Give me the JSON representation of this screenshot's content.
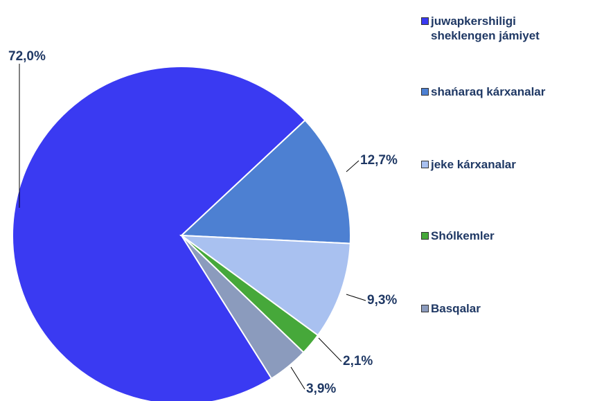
{
  "chart_data": {
    "type": "pie",
    "categories": [
      "juwapkershiligi sheklengen jámiyet",
      "shańaraq kárxanalar",
      "jeke kárxanalar",
      "Shólkemler",
      "Basqalar"
    ],
    "values": [
      72.0,
      12.7,
      9.3,
      2.1,
      3.9
    ],
    "value_labels": [
      "72,0%",
      "12,7%",
      "9,3%",
      "2,1%",
      "3,9%"
    ],
    "colors": [
      "#3a3af2",
      "#4d80d2",
      "#a9c1f0",
      "#46a83a",
      "#8b9bbd"
    ],
    "legend": "right"
  }
}
